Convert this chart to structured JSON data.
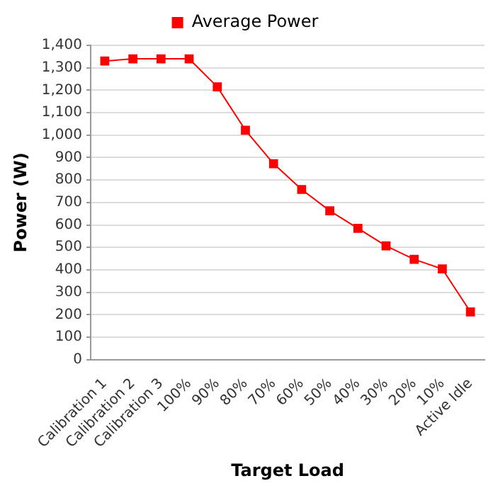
{
  "chart_data": {
    "type": "line",
    "xlabel": "Target Load",
    "ylabel": "Power (W)",
    "categories": [
      "Calibration 1",
      "Calibration 2",
      "Calibration 3",
      "100%",
      "90%",
      "80%",
      "70%",
      "60%",
      "50%",
      "40%",
      "30%",
      "20%",
      "10%",
      "Active Idle"
    ],
    "series": [
      {
        "name": "Average Power",
        "color": "#ff0000",
        "values": [
          1330,
          1340,
          1340,
          1340,
          1215,
          1022,
          873,
          758,
          663,
          585,
          507,
          447,
          404,
          213
        ]
      }
    ],
    "ylim": [
      0,
      1400
    ],
    "yticks": [
      0,
      100,
      200,
      300,
      400,
      500,
      600,
      700,
      800,
      900,
      {
        "value": 1000,
        "label": "1,000"
      },
      {
        "value": 1100,
        "label": "1,100"
      },
      {
        "value": 1200,
        "label": "1,200"
      },
      {
        "value": 1300,
        "label": "1,300"
      },
      {
        "value": 1400,
        "label": "1,400"
      }
    ],
    "grid": "y",
    "legend": "top",
    "marker": "square",
    "line_style": "solid"
  }
}
